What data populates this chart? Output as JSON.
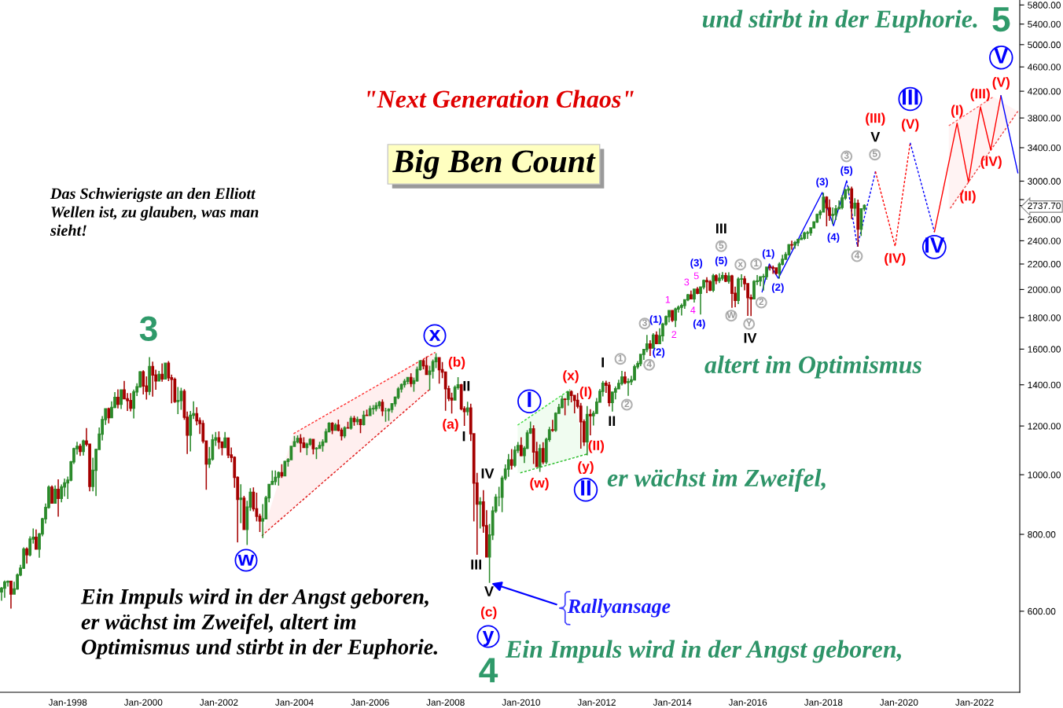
{
  "chart_data": {
    "type": "candlestick",
    "title": "\"Next Generation Chaos\"",
    "subtitle": "Big Ben Count",
    "x": [
      "1996-04",
      "1996-05",
      "1996-06",
      "1996-07",
      "1996-08",
      "1996-09",
      "1996-10",
      "1996-11",
      "1996-12",
      "1997-01",
      "1997-02",
      "1997-03",
      "1997-04",
      "1997-05",
      "1997-06",
      "1997-07",
      "1997-08",
      "1997-09",
      "1997-10",
      "1997-11",
      "1997-12",
      "1998-01",
      "1998-02",
      "1998-03",
      "1998-04",
      "1998-05",
      "1998-06",
      "1998-07",
      "1998-08",
      "1998-09",
      "1998-10",
      "1998-11",
      "1998-12",
      "1999-01",
      "1999-02",
      "1999-03",
      "1999-04",
      "1999-05",
      "1999-06",
      "1999-07",
      "1999-08",
      "1999-09",
      "1999-10",
      "1999-11",
      "1999-12",
      "2000-01",
      "2000-02",
      "2000-03",
      "2000-04",
      "2000-05",
      "2000-06",
      "2000-07",
      "2000-08",
      "2000-09",
      "2000-10",
      "2000-11",
      "2000-12",
      "2001-01",
      "2001-02",
      "2001-03",
      "2001-04",
      "2001-05",
      "2001-06",
      "2001-07",
      "2001-08",
      "2001-09",
      "2001-10",
      "2001-11",
      "2001-12",
      "2002-01",
      "2002-02",
      "2002-03",
      "2002-04",
      "2002-05",
      "2002-06",
      "2002-07",
      "2002-08",
      "2002-09",
      "2002-10",
      "2002-11",
      "2002-12",
      "2003-01",
      "2003-02",
      "2003-03",
      "2003-04",
      "2003-05",
      "2003-06",
      "2003-07",
      "2003-08",
      "2003-09",
      "2003-10",
      "2003-11",
      "2003-12",
      "2004-01",
      "2004-02",
      "2004-03",
      "2004-04",
      "2004-05",
      "2004-06",
      "2004-07",
      "2004-08",
      "2004-09",
      "2004-10",
      "2004-11",
      "2004-12",
      "2005-01",
      "2005-02",
      "2005-03",
      "2005-04",
      "2005-05",
      "2005-06",
      "2005-07",
      "2005-08",
      "2005-09",
      "2005-10",
      "2005-11",
      "2005-12",
      "2006-01",
      "2006-02",
      "2006-03",
      "2006-04",
      "2006-05",
      "2006-06",
      "2006-07",
      "2006-08",
      "2006-09",
      "2006-10",
      "2006-11",
      "2006-12",
      "2007-01",
      "2007-02",
      "2007-03",
      "2007-04",
      "2007-05",
      "2007-06",
      "2007-07",
      "2007-08",
      "2007-09",
      "2007-10",
      "2007-11",
      "2007-12",
      "2008-01",
      "2008-02",
      "2008-03",
      "2008-04",
      "2008-05",
      "2008-06",
      "2008-07",
      "2008-08",
      "2008-09",
      "2008-10",
      "2008-11",
      "2008-12",
      "2009-01",
      "2009-02",
      "2009-03",
      "2009-04",
      "2009-05",
      "2009-06",
      "2009-07",
      "2009-08",
      "2009-09",
      "2009-10",
      "2009-11",
      "2009-12",
      "2010-01",
      "2010-02",
      "2010-03",
      "2010-04",
      "2010-05",
      "2010-06",
      "2010-07",
      "2010-08",
      "2010-09",
      "2010-10",
      "2010-11",
      "2010-12",
      "2011-01",
      "2011-02",
      "2011-03",
      "2011-04",
      "2011-05",
      "2011-06",
      "2011-07",
      "2011-08",
      "2011-09",
      "2011-10",
      "2011-11",
      "2011-12",
      "2012-01",
      "2012-02",
      "2012-03",
      "2012-04",
      "2012-05",
      "2012-06",
      "2012-07",
      "2012-08",
      "2012-09",
      "2012-10",
      "2012-11",
      "2012-12",
      "2013-01",
      "2013-02",
      "2013-03",
      "2013-04",
      "2013-05",
      "2013-06",
      "2013-07",
      "2013-08",
      "2013-09",
      "2013-10",
      "2013-11",
      "2013-12",
      "2014-01",
      "2014-02",
      "2014-03",
      "2014-04",
      "2014-05",
      "2014-06",
      "2014-07",
      "2014-08",
      "2014-09",
      "2014-10",
      "2014-11",
      "2014-12",
      "2015-01",
      "2015-02",
      "2015-03",
      "2015-04",
      "2015-05",
      "2015-06",
      "2015-07",
      "2015-08",
      "2015-09",
      "2015-10",
      "2015-11",
      "2015-12",
      "2016-01",
      "2016-02",
      "2016-03",
      "2016-04",
      "2016-05",
      "2016-06",
      "2016-07",
      "2016-08",
      "2016-09",
      "2016-10",
      "2016-11",
      "2016-12",
      "2017-01",
      "2017-02",
      "2017-03",
      "2017-04",
      "2017-05",
      "2017-06",
      "2017-07",
      "2017-08",
      "2017-09",
      "2017-10",
      "2017-11",
      "2017-12",
      "2018-01",
      "2018-02",
      "2018-03",
      "2018-04",
      "2018-05",
      "2018-06",
      "2018-07",
      "2018-08",
      "2018-09",
      "2018-10",
      "2018-11",
      "2018-12",
      "2019-01",
      "2019-02"
    ],
    "ohlc": [
      [
        645,
        657,
        624,
        654
      ],
      [
        654,
        673,
        631,
        669
      ],
      [
        669,
        673,
        658,
        671
      ],
      [
        671,
        672,
        606,
        640
      ],
      [
        640,
        670,
        640,
        652
      ],
      [
        652,
        691,
        650,
        687
      ],
      [
        687,
        714,
        684,
        705
      ],
      [
        705,
        762,
        703,
        757
      ],
      [
        757,
        762,
        717,
        741
      ],
      [
        741,
        794,
        737,
        786
      ],
      [
        786,
        818,
        773,
        791
      ],
      [
        791,
        815,
        756,
        757
      ],
      [
        757,
        804,
        733,
        801
      ],
      [
        801,
        851,
        794,
        848
      ],
      [
        848,
        898,
        833,
        885
      ],
      [
        885,
        961,
        881,
        954
      ],
      [
        954,
        961,
        898,
        899
      ],
      [
        899,
        961,
        897,
        947
      ],
      [
        947,
        983,
        855,
        915
      ],
      [
        915,
        964,
        902,
        955
      ],
      [
        955,
        986,
        922,
        970
      ],
      [
        970,
        993,
        913,
        980
      ],
      [
        980,
        1053,
        976,
        1049
      ],
      [
        1049,
        1106,
        1041,
        1102
      ],
      [
        1102,
        1131,
        1078,
        1112
      ],
      [
        1112,
        1123,
        1073,
        1091
      ],
      [
        1091,
        1140,
        1074,
        1134
      ],
      [
        1134,
        1191,
        1112,
        1121
      ],
      [
        1121,
        1121,
        940,
        957
      ],
      [
        957,
        1066,
        940,
        1017
      ],
      [
        1017,
        1102,
        923,
        1099
      ],
      [
        1099,
        1193,
        1099,
        1164
      ],
      [
        1164,
        1245,
        1137,
        1229
      ],
      [
        1229,
        1280,
        1205,
        1280
      ],
      [
        1280,
        1285,
        1212,
        1238
      ],
      [
        1238,
        1316,
        1236,
        1286
      ],
      [
        1286,
        1362,
        1283,
        1335
      ],
      [
        1335,
        1376,
        1282,
        1302
      ],
      [
        1302,
        1373,
        1279,
        1373
      ],
      [
        1373,
        1421,
        1326,
        1329
      ],
      [
        1329,
        1357,
        1269,
        1320
      ],
      [
        1320,
        1357,
        1268,
        1283
      ],
      [
        1283,
        1375,
        1234,
        1363
      ],
      [
        1363,
        1408,
        1342,
        1389
      ],
      [
        1389,
        1474,
        1388,
        1469
      ],
      [
        1469,
        1478,
        1350,
        1394
      ],
      [
        1394,
        1445,
        1325,
        1366
      ],
      [
        1366,
        1553,
        1347,
        1499
      ],
      [
        1499,
        1527,
        1339,
        1452
      ],
      [
        1452,
        1481,
        1374,
        1421
      ],
      [
        1421,
        1475,
        1421,
        1455
      ],
      [
        1455,
        1517,
        1416,
        1431
      ],
      [
        1431,
        1521,
        1428,
        1518
      ],
      [
        1518,
        1530,
        1419,
        1437
      ],
      [
        1437,
        1454,
        1306,
        1429
      ],
      [
        1429,
        1438,
        1308,
        1315
      ],
      [
        1315,
        1389,
        1255,
        1320
      ],
      [
        1320,
        1384,
        1275,
        1366
      ],
      [
        1366,
        1377,
        1228,
        1240
      ],
      [
        1240,
        1267,
        1081,
        1160
      ],
      [
        1160,
        1269,
        1091,
        1249
      ],
      [
        1249,
        1316,
        1232,
        1256
      ],
      [
        1256,
        1287,
        1203,
        1224
      ],
      [
        1224,
        1239,
        1165,
        1211
      ],
      [
        1211,
        1226,
        1124,
        1134
      ],
      [
        1134,
        1136,
        945,
        1041
      ],
      [
        1041,
        1110,
        1026,
        1060
      ],
      [
        1060,
        1163,
        1054,
        1139
      ],
      [
        1139,
        1173,
        1114,
        1148
      ],
      [
        1148,
        1176,
        1101,
        1130
      ],
      [
        1130,
        1131,
        1075,
        1107
      ],
      [
        1107,
        1173,
        1107,
        1147
      ],
      [
        1147,
        1147,
        1064,
        1077
      ],
      [
        1077,
        1107,
        1048,
        1067
      ],
      [
        1067,
        1071,
        952,
        990
      ],
      [
        990,
        994,
        776,
        912
      ],
      [
        912,
        965,
        834,
        916
      ],
      [
        916,
        924,
        815,
        815
      ],
      [
        815,
        907,
        769,
        886
      ],
      [
        886,
        951,
        873,
        936
      ],
      [
        936,
        954,
        872,
        880
      ],
      [
        880,
        935,
        840,
        856
      ],
      [
        856,
        864,
        807,
        841
      ],
      [
        841,
        896,
        789,
        848
      ],
      [
        848,
        924,
        847,
        917
      ],
      [
        917,
        965,
        902,
        964
      ],
      [
        964,
        1016,
        963,
        975
      ],
      [
        975,
        1016,
        962,
        990
      ],
      [
        990,
        1012,
        960,
        1008
      ],
      [
        1008,
        1040,
        988,
        996
      ],
      [
        996,
        1054,
        996,
        1051
      ],
      [
        1051,
        1064,
        1031,
        1058
      ],
      [
        1058,
        1112,
        1058,
        1112
      ],
      [
        1112,
        1156,
        1112,
        1131
      ],
      [
        1131,
        1159,
        1124,
        1145
      ],
      [
        1145,
        1164,
        1087,
        1126
      ],
      [
        1126,
        1150,
        1107,
        1107
      ],
      [
        1107,
        1128,
        1076,
        1121
      ],
      [
        1121,
        1146,
        1114,
        1141
      ],
      [
        1141,
        1141,
        1079,
        1102
      ],
      [
        1102,
        1109,
        1060,
        1104
      ],
      [
        1104,
        1131,
        1102,
        1115
      ],
      [
        1115,
        1142,
        1090,
        1130
      ],
      [
        1130,
        1188,
        1127,
        1174
      ],
      [
        1174,
        1217,
        1173,
        1212
      ],
      [
        1212,
        1217,
        1164,
        1181
      ],
      [
        1181,
        1213,
        1180,
        1204
      ],
      [
        1204,
        1229,
        1176,
        1181
      ],
      [
        1181,
        1192,
        1137,
        1157
      ],
      [
        1157,
        1199,
        1147,
        1192
      ],
      [
        1192,
        1219,
        1188,
        1191
      ],
      [
        1191,
        1245,
        1184,
        1234
      ],
      [
        1234,
        1246,
        1201,
        1220
      ],
      [
        1220,
        1243,
        1205,
        1229
      ],
      [
        1229,
        1233,
        1168,
        1207
      ],
      [
        1207,
        1270,
        1202,
        1249
      ],
      [
        1249,
        1276,
        1246,
        1248
      ],
      [
        1248,
        1295,
        1245,
        1280
      ],
      [
        1280,
        1298,
        1253,
        1281
      ],
      [
        1281,
        1311,
        1268,
        1295
      ],
      [
        1295,
        1319,
        1280,
        1311
      ],
      [
        1311,
        1326,
        1245,
        1270
      ],
      [
        1270,
        1284,
        1219,
        1270
      ],
      [
        1270,
        1283,
        1224,
        1277
      ],
      [
        1277,
        1306,
        1261,
        1304
      ],
      [
        1304,
        1340,
        1290,
        1336
      ],
      [
        1336,
        1389,
        1327,
        1378
      ],
      [
        1378,
        1407,
        1360,
        1401
      ],
      [
        1401,
        1431,
        1385,
        1418
      ],
      [
        1418,
        1441,
        1403,
        1438
      ],
      [
        1438,
        1462,
        1389,
        1407
      ],
      [
        1407,
        1438,
        1364,
        1421
      ],
      [
        1421,
        1499,
        1416,
        1482
      ],
      [
        1482,
        1535,
        1476,
        1531
      ],
      [
        1531,
        1541,
        1484,
        1503
      ],
      [
        1503,
        1556,
        1455,
        1455
      ],
      [
        1455,
        1503,
        1371,
        1474
      ],
      [
        1474,
        1539,
        1433,
        1527
      ],
      [
        1527,
        1576,
        1490,
        1549
      ],
      [
        1549,
        1553,
        1406,
        1481
      ],
      [
        1481,
        1524,
        1435,
        1468
      ],
      [
        1468,
        1471,
        1270,
        1379
      ],
      [
        1379,
        1396,
        1317,
        1331
      ],
      [
        1331,
        1359,
        1257,
        1323
      ],
      [
        1323,
        1397,
        1323,
        1386
      ],
      [
        1386,
        1440,
        1374,
        1400
      ],
      [
        1400,
        1405,
        1272,
        1280
      ],
      [
        1280,
        1292,
        1200,
        1267
      ],
      [
        1267,
        1314,
        1248,
        1283
      ],
      [
        1283,
        1304,
        1134,
        1166
      ],
      [
        1166,
        1167,
        840,
        969
      ],
      [
        969,
        1007,
        741,
        896
      ],
      [
        896,
        919,
        818,
        903
      ],
      [
        903,
        944,
        805,
        826
      ],
      [
        826,
        876,
        735,
        735
      ],
      [
        735,
        832,
        667,
        798
      ],
      [
        798,
        888,
        783,
        873
      ],
      [
        873,
        930,
        867,
        919
      ],
      [
        919,
        956,
        889,
        919
      ],
      [
        919,
        996,
        869,
        987
      ],
      [
        987,
        1039,
        979,
        1021
      ],
      [
        1021,
        1081,
        992,
        1057
      ],
      [
        1057,
        1101,
        1020,
        1036
      ],
      [
        1036,
        1113,
        1029,
        1096
      ],
      [
        1096,
        1130,
        1085,
        1115
      ],
      [
        1115,
        1150,
        1071,
        1074
      ],
      [
        1074,
        1113,
        1045,
        1104
      ],
      [
        1104,
        1181,
        1101,
        1169
      ],
      [
        1169,
        1220,
        1165,
        1187
      ],
      [
        1187,
        1203,
        1041,
        1089
      ],
      [
        1089,
        1131,
        1029,
        1031
      ],
      [
        1031,
        1120,
        1011,
        1102
      ],
      [
        1102,
        1129,
        1040,
        1049
      ],
      [
        1049,
        1149,
        1040,
        1141
      ],
      [
        1141,
        1196,
        1131,
        1183
      ],
      [
        1183,
        1228,
        1174,
        1181
      ],
      [
        1181,
        1263,
        1174,
        1258
      ],
      [
        1258,
        1303,
        1257,
        1286
      ],
      [
        1286,
        1344,
        1282,
        1327
      ],
      [
        1327,
        1332,
        1249,
        1326
      ],
      [
        1326,
        1366,
        1295,
        1364
      ],
      [
        1364,
        1371,
        1311,
        1345
      ],
      [
        1345,
        1345,
        1258,
        1321
      ],
      [
        1321,
        1357,
        1282,
        1292
      ],
      [
        1292,
        1308,
        1102,
        1219
      ],
      [
        1219,
        1230,
        1114,
        1131
      ],
      [
        1131,
        1293,
        1075,
        1253
      ],
      [
        1253,
        1278,
        1159,
        1247
      ],
      [
        1247,
        1270,
        1202,
        1258
      ],
      [
        1258,
        1333,
        1258,
        1312
      ],
      [
        1312,
        1378,
        1311,
        1366
      ],
      [
        1366,
        1420,
        1340,
        1408
      ],
      [
        1408,
        1422,
        1358,
        1398
      ],
      [
        1398,
        1415,
        1291,
        1310
      ],
      [
        1310,
        1364,
        1267,
        1362
      ],
      [
        1362,
        1392,
        1326,
        1379
      ],
      [
        1379,
        1427,
        1378,
        1407
      ],
      [
        1407,
        1475,
        1397,
        1441
      ],
      [
        1441,
        1470,
        1403,
        1412
      ],
      [
        1412,
        1434,
        1343,
        1416
      ],
      [
        1416,
        1448,
        1399,
        1426
      ],
      [
        1426,
        1510,
        1426,
        1498
      ],
      [
        1498,
        1530,
        1486,
        1515
      ],
      [
        1515,
        1571,
        1501,
        1569
      ],
      [
        1569,
        1598,
        1537,
        1598
      ],
      [
        1598,
        1687,
        1582,
        1631
      ],
      [
        1631,
        1654,
        1560,
        1606
      ],
      [
        1606,
        1698,
        1605,
        1686
      ],
      [
        1686,
        1710,
        1630,
        1633
      ],
      [
        1633,
        1730,
        1633,
        1682
      ],
      [
        1682,
        1766,
        1647,
        1757
      ],
      [
        1757,
        1814,
        1747,
        1806
      ],
      [
        1806,
        1849,
        1768,
        1848
      ],
      [
        1848,
        1851,
        1771,
        1783
      ],
      [
        1783,
        1868,
        1738,
        1859
      ],
      [
        1859,
        1884,
        1834,
        1872
      ],
      [
        1872,
        1898,
        1815,
        1884
      ],
      [
        1884,
        1925,
        1860,
        1924
      ],
      [
        1924,
        1968,
        1915,
        1960
      ],
      [
        1960,
        1992,
        1930,
        1931
      ],
      [
        1931,
        2006,
        1905,
        2003
      ],
      [
        2003,
        2019,
        1965,
        1972
      ],
      [
        1972,
        2019,
        1821,
        2018
      ],
      [
        2018,
        2076,
        2001,
        2068
      ],
      [
        2068,
        2094,
        1973,
        2059
      ],
      [
        2059,
        2072,
        1988,
        1995
      ],
      [
        1995,
        2120,
        1981,
        2105
      ],
      [
        2105,
        2118,
        2040,
        2068
      ],
      [
        2068,
        2126,
        2048,
        2086
      ],
      [
        2086,
        2135,
        2068,
        2107
      ],
      [
        2107,
        2130,
        2056,
        2063
      ],
      [
        2063,
        2133,
        2044,
        2104
      ],
      [
        2104,
        2113,
        1867,
        1972
      ],
      [
        1972,
        2021,
        1872,
        1920
      ],
      [
        1920,
        2094,
        1893,
        2079
      ],
      [
        2079,
        2117,
        2019,
        2080
      ],
      [
        2080,
        2104,
        1993,
        2044
      ],
      [
        2044,
        2044,
        1812,
        1940
      ],
      [
        1940,
        1963,
        1810,
        1932
      ],
      [
        1932,
        2072,
        1932,
        2060
      ],
      [
        2060,
        2111,
        2034,
        2065
      ],
      [
        2065,
        2100,
        2025,
        2097
      ],
      [
        2097,
        2120,
        1992,
        2099
      ],
      [
        2099,
        2178,
        2075,
        2174
      ],
      [
        2174,
        2194,
        2148,
        2171
      ],
      [
        2171,
        2187,
        2120,
        2168
      ],
      [
        2168,
        2170,
        2115,
        2126
      ],
      [
        2126,
        2214,
        2084,
        2199
      ],
      [
        2199,
        2278,
        2188,
        2239
      ],
      [
        2239,
        2301,
        2234,
        2279
      ],
      [
        2279,
        2371,
        2271,
        2364
      ],
      [
        2364,
        2401,
        2322,
        2363
      ],
      [
        2363,
        2399,
        2329,
        2384
      ],
      [
        2384,
        2419,
        2353,
        2412
      ],
      [
        2412,
        2454,
        2406,
        2423
      ],
      [
        2423,
        2484,
        2408,
        2470
      ],
      [
        2470,
        2491,
        2417,
        2472
      ],
      [
        2472,
        2520,
        2446,
        2519
      ],
      [
        2519,
        2582,
        2515,
        2575
      ],
      [
        2575,
        2657,
        2566,
        2648
      ],
      [
        2648,
        2695,
        2605,
        2674
      ],
      [
        2674,
        2873,
        2674,
        2824
      ],
      [
        2824,
        2836,
        2533,
        2714
      ],
      [
        2714,
        2802,
        2586,
        2641
      ],
      [
        2641,
        2718,
        2554,
        2648
      ],
      [
        2648,
        2743,
        2594,
        2705
      ],
      [
        2705,
        2791,
        2698,
        2718
      ],
      [
        2718,
        2848,
        2699,
        2816
      ],
      [
        2816,
        2916,
        2796,
        2902
      ],
      [
        2902,
        2941,
        2865,
        2914
      ],
      [
        2914,
        2940,
        2604,
        2712
      ],
      [
        2712,
        2815,
        2631,
        2760
      ],
      [
        2760,
        2800,
        2347,
        2507
      ],
      [
        2507,
        2709,
        2444,
        2704
      ],
      [
        2704,
        2750,
        2681,
        2737.7
      ]
    ],
    "colors": [
      "#2b8a2b",
      "#2b8a2b",
      "#2b8a2b",
      "#a50000",
      "#2b8a2b",
      "#2b8a2b",
      "#2b8a2b",
      "#2b8a2b",
      "#a50000",
      "#2b8a2b",
      "#2b8a2b",
      "#a50000",
      "#2b8a2b",
      "#2b8a2b",
      "#2b8a2b",
      "#2b8a2b",
      "#a50000",
      "#2b8a2b",
      "#a50000",
      "#2b8a2b",
      "#2b8a2b",
      "#2b8a2b",
      "#2b8a2b",
      "#2b8a2b",
      "#2b8a2b",
      "#a50000",
      "#2b8a2b",
      "#a50000",
      "#a50000",
      "#2b8a2b",
      "#2b8a2b",
      "#2b8a2b",
      "#2b8a2b",
      "#2b8a2b",
      "#a50000",
      "#2b8a2b",
      "#2b8a2b",
      "#a50000",
      "#2b8a2b",
      "#a50000",
      "#a50000",
      "#a50000",
      "#2b8a2b",
      "#2b8a2b",
      "#2b8a2b",
      "#a50000",
      "#a50000",
      "#2b8a2b",
      "#a50000",
      "#a50000",
      "#2b8a2b",
      "#a50000",
      "#2b8a2b",
      "#a50000",
      "#a50000",
      "#a50000",
      "#2b8a2b",
      "#2b8a2b",
      "#a50000",
      "#a50000",
      "#2b8a2b",
      "#2b8a2b",
      "#a50000",
      "#a50000",
      "#a50000",
      "#a50000",
      "#2b8a2b",
      "#2b8a2b",
      "#2b8a2b",
      "#a50000",
      "#a50000",
      "#2b8a2b",
      "#a50000",
      "#a50000",
      "#a50000",
      "#a50000",
      "#2b8a2b",
      "#a50000",
      "#2b8a2b",
      "#2b8a2b",
      "#a50000",
      "#a50000",
      "#a50000",
      "#2b8a2b",
      "#2b8a2b",
      "#2b8a2b",
      "#2b8a2b",
      "#2b8a2b",
      "#2b8a2b",
      "#a50000",
      "#2b8a2b",
      "#2b8a2b",
      "#2b8a2b",
      "#2b8a2b",
      "#2b8a2b",
      "#a50000",
      "#a50000",
      "#2b8a2b",
      "#2b8a2b",
      "#a50000",
      "#2b8a2b",
      "#2b8a2b",
      "#2b8a2b",
      "#2b8a2b",
      "#2b8a2b",
      "#a50000",
      "#2b8a2b",
      "#a50000",
      "#a50000",
      "#2b8a2b",
      "#a50000",
      "#2b8a2b",
      "#a50000",
      "#2b8a2b",
      "#a50000",
      "#2b8a2b",
      "#a50000",
      "#2b8a2b",
      "#2b8a2b",
      "#2b8a2b",
      "#2b8a2b",
      "#a50000",
      "#2b8a2b",
      "#2b8a2b",
      "#2b8a2b",
      "#2b8a2b",
      "#2b8a2b",
      "#2b8a2b",
      "#2b8a2b",
      "#2b8a2b",
      "#a50000",
      "#2b8a2b",
      "#2b8a2b",
      "#2b8a2b",
      "#a50000",
      "#a50000",
      "#2b8a2b",
      "#2b8a2b",
      "#2b8a2b",
      "#a50000",
      "#a50000",
      "#a50000",
      "#a50000",
      "#a50000",
      "#2b8a2b",
      "#2b8a2b",
      "#a50000",
      "#a50000",
      "#2b8a2b",
      "#a50000",
      "#a50000",
      "#a50000",
      "#2b8a2b",
      "#a50000",
      "#a50000",
      "#2b8a2b",
      "#2b8a2b",
      "#2b8a2b",
      "#2b8a2b",
      "#2b8a2b",
      "#2b8a2b",
      "#2b8a2b",
      "#a50000",
      "#2b8a2b",
      "#2b8a2b",
      "#a50000",
      "#2b8a2b",
      "#2b8a2b",
      "#2b8a2b",
      "#a50000",
      "#a50000",
      "#2b8a2b",
      "#a50000",
      "#2b8a2b",
      "#2b8a2b",
      "#a50000",
      "#2b8a2b",
      "#2b8a2b",
      "#2b8a2b",
      "#a50000",
      "#2b8a2b",
      "#a50000",
      "#a50000",
      "#a50000",
      "#a50000",
      "#a50000",
      "#2b8a2b",
      "#a50000",
      "#2b8a2b",
      "#2b8a2b",
      "#2b8a2b",
      "#2b8a2b",
      "#a50000",
      "#a50000",
      "#2b8a2b",
      "#2b8a2b",
      "#2b8a2b",
      "#2b8a2b",
      "#a50000",
      "#2b8a2b",
      "#2b8a2b",
      "#2b8a2b",
      "#2b8a2b",
      "#2b8a2b",
      "#2b8a2b",
      "#2b8a2b",
      "#a50000",
      "#2b8a2b",
      "#a50000",
      "#2b8a2b",
      "#2b8a2b",
      "#2b8a2b",
      "#2b8a2b",
      "#a50000",
      "#2b8a2b",
      "#2b8a2b",
      "#2b8a2b",
      "#2b8a2b",
      "#2b8a2b",
      "#a50000",
      "#2b8a2b",
      "#a50000",
      "#2b8a2b",
      "#2b8a2b",
      "#a50000",
      "#a50000",
      "#2b8a2b",
      "#a50000",
      "#2b8a2b",
      "#2b8a2b",
      "#a50000",
      "#2b8a2b",
      "#a50000",
      "#a50000",
      "#2b8a2b",
      "#2b8a2b",
      "#a50000",
      "#a50000",
      "#a50000",
      "#2b8a2b",
      "#2b8a2b",
      "#2b8a2b",
      "#2b8a2b",
      "#2b8a2b",
      "#a50000",
      "#a50000",
      "#a50000",
      "#2b8a2b",
      "#2b8a2b",
      "#2b8a2b",
      "#2b8a2b",
      "#a50000",
      "#2b8a2b",
      "#2b8a2b",
      "#2b8a2b",
      "#2b8a2b",
      "#2b8a2b",
      "#2b8a2b",
      "#2b8a2b",
      "#2b8a2b",
      "#2b8a2b",
      "#2b8a2b",
      "#a50000",
      "#a50000",
      "#2b8a2b",
      "#2b8a2b",
      "#2b8a2b",
      "#2b8a2b",
      "#2b8a2b",
      "#2b8a2b",
      "#a50000",
      "#2b8a2b",
      "#a50000",
      "#2b8a2b",
      "#2b8a2b"
    ],
    "series": [
      {
        "type": "line",
        "color": "#ff3030",
        "line_style": "dashed",
        "x": [
          "2003-02-20",
          "2003-12-24",
          "2007-07-27",
          "2007-09-24"
        ],
        "values": [
          null,
          1166,
          1561,
          1581
        ],
        "lower": [
          796,
          882,
          1374,
          1581
        ],
        "upper": [
          796,
          1166,
          1561,
          1581
        ]
      },
      {
        "type": "line",
        "color": "#e01c1c",
        "line_style": "dashed",
        "x": [
          "2003-02-20",
          "2007-07-27"
        ],
        "values": [
          796,
          1374
        ]
      },
      {
        "type": "line",
        "color": "#3ddc3d",
        "line_style": "dashed",
        "x": [
          "2009-11-28",
          "2011-04-20",
          "2011-09-27"
        ],
        "values": [
          1204,
          1375,
          null
        ],
        "lower": [
          1006,
          1061,
          1080
        ],
        "upper": [
          1204,
          1375,
          1080
        ]
      },
      {
        "type": "line",
        "color": "#22bb22",
        "line_style": "dashed",
        "x": [
          "2009-12-24",
          "2011-09-27"
        ],
        "values": [
          1007,
          1080
        ]
      },
      {
        "type": "line",
        "color": "#ff6060",
        "line_style": "dashed",
        "x": [
          "2021-04-27",
          "2022-07-01",
          "2023-02-24"
        ],
        "values": [
          3691,
          4112,
          null
        ],
        "lower": [
          2688,
          3419,
          3896
        ],
        "upper": [
          3691,
          4112,
          3896
        ]
      },
      {
        "type": "line",
        "color": "#ee4444",
        "line_style": "dashed",
        "x": [
          "2021-05-11",
          "2023-02-24"
        ],
        "values": [
          2710,
          3896
        ]
      },
      {
        "type": "line",
        "color": "#0000ff",
        "line_style": "solid",
        "x": [
          "2016-05-18",
          "2016-07-27",
          "2016-10-22",
          "2017-12-20",
          "2018-04-09",
          "2018-08-14"
        ],
        "values": [
          1981,
          2200,
          2086,
          2875,
          2538,
          3004
        ]
      },
      {
        "type": "line",
        "color": "#0000ff",
        "line_style": "dashed",
        "x": [
          "2018-08-14",
          "2018-11-25",
          "2019-05-19"
        ],
        "values": [
          3004,
          2351,
          3110
        ]
      },
      {
        "type": "line",
        "color": "#ff0000",
        "line_style": "dashed",
        "x": [
          "2019-05-19",
          "2019-11-25",
          "2020-04-19"
        ],
        "values": [
          3110,
          2351,
          3463
        ]
      },
      {
        "type": "line",
        "color": "#0000ff",
        "line_style": "dashed",
        "x": [
          "2020-04-19",
          "2020-12-09"
        ],
        "values": [
          3463,
          2481
        ]
      },
      {
        "type": "line",
        "color": "#ff0000",
        "line_style": "solid",
        "x": [
          "2020-12-09",
          "2021-07-16",
          "2021-11-03",
          "2022-02-27",
          "2022-06-06",
          "2022-09-13"
        ],
        "values": [
          2481,
          3727,
          2989,
          3961,
          3372,
          4131
        ]
      },
      {
        "type": "line",
        "color": "#0000ff",
        "line_style": "solid",
        "x": [
          "2022-09-13",
          "2023-02-24"
        ],
        "values": [
          4131,
          3094
        ]
      }
    ],
    "xlim": [
      "1996-03-17",
      "2023-03-14"
    ],
    "xticks": [
      {
        "value": "1998-01",
        "label": "Jan-1998"
      },
      {
        "value": "2000-01",
        "label": "Jan-2000"
      },
      {
        "value": "2002-01",
        "label": "Jan-2002"
      },
      {
        "value": "2004-01",
        "label": "Jan-2004"
      },
      {
        "value": "2006-01",
        "label": "Jan-2006"
      },
      {
        "value": "2008-01",
        "label": "Jan-2008"
      },
      {
        "value": "2010-01",
        "label": "Jan-2010"
      },
      {
        "value": "2012-01",
        "label": "Jan-2012"
      },
      {
        "value": "2014-01",
        "label": "Jan-2014"
      },
      {
        "value": "2016-01",
        "label": "Jan-2016"
      },
      {
        "value": "2018-01",
        "label": "Jan-2018"
      },
      {
        "value": "2020-01",
        "label": "Jan-2020"
      },
      {
        "value": "2022-01",
        "label": "Jan-2022"
      }
    ],
    "ylim": [
      443,
      5909
    ],
    "yticks": [
      {
        "value": 600,
        "label": "600.00"
      },
      {
        "value": 800,
        "label": "800.00"
      },
      {
        "value": 1000,
        "label": "1000.00"
      },
      {
        "value": 1200,
        "label": "1200.00"
      },
      {
        "value": 1400,
        "label": "1400.00"
      },
      {
        "value": 1600,
        "label": "1600.00"
      },
      {
        "value": 1800,
        "label": "1800.00"
      },
      {
        "value": 2000,
        "label": "2000.00"
      },
      {
        "value": 2200,
        "label": "2200.00"
      },
      {
        "value": 2400,
        "label": "2400.00"
      },
      {
        "value": 2600,
        "label": "2600.00"
      },
      {
        "value": 2737.7,
        "label": "2737.70"
      },
      {
        "value": 2800,
        "label": null
      },
      {
        "value": 3000,
        "label": "3000.00"
      },
      {
        "value": 3400,
        "label": "3400.00"
      },
      {
        "value": 3800,
        "label": "3800.00"
      },
      {
        "value": 4200,
        "label": "4200.00"
      },
      {
        "value": 4600,
        "label": "4600.00"
      },
      {
        "value": 5000,
        "label": "5000.00"
      },
      {
        "value": 5400,
        "label": "5400.00"
      },
      {
        "value": 5800,
        "label": "5800.00"
      }
    ],
    "log": true,
    "annotations": [
      "Das Schwierigste an den Elliott\nWellen ist, zu glauben, was man\nsieht!",
      "Ein Impuls wird in der Angst geboren,\ner wächst im Zweifel, altert im\nOptimismus und stirbt in der Euphorie.",
      "und stirbt in der Euphorie.",
      "altert im Optimismus",
      "er wächst im Zweifel,",
      "Ein Impuls wird in der Angst geboren,",
      {
        "text": "Rallyansage",
        "x": "2009-03-10",
        "y": 667
      },
      "3",
      "w",
      "x",
      "(b)",
      "(a)",
      "II",
      "I",
      "IV",
      "III",
      "V",
      "(c)",
      "y",
      "4",
      "I",
      "(x)",
      "(I)",
      "(II)",
      "(y)",
      "(w)",
      "II",
      "I",
      "II",
      "1",
      "2",
      "3",
      "4",
      "(1)",
      "(2)",
      "1",
      "2",
      "3",
      "4",
      "5",
      "(3)",
      "(4)",
      "(5)",
      "5",
      "III",
      "x",
      "1",
      "W",
      "Y",
      "IV",
      "2",
      "(1)",
      "(2)",
      "(3)",
      "(4)",
      "(5)",
      "3",
      "4",
      "V",
      "5",
      "(III)",
      "(IV)",
      "III",
      "(V)",
      "IV",
      "(I)",
      "(II)",
      "(III)",
      "(IV)",
      "(V)",
      "V",
      "5"
    ]
  }
}
